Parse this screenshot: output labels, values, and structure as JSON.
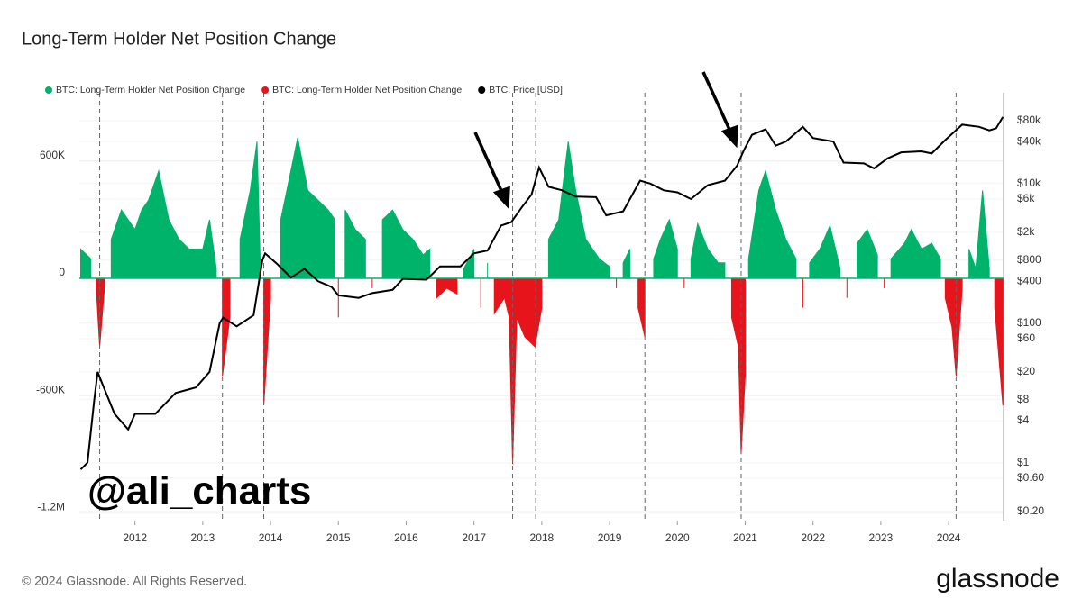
{
  "chart_data": {
    "type": "area-line",
    "title": "Long-Term Holder Net Position Change",
    "watermark": "@ali_charts",
    "footer": "© 2024 Glassnode. All Rights Reserved.",
    "brand": "glassnode",
    "xlim": [
      2011.18,
      2024.81
    ],
    "xticks": [
      2012,
      2013,
      2014,
      2015,
      2016,
      2017,
      2018,
      2019,
      2020,
      2021,
      2022,
      2023,
      2024
    ],
    "ylim": [
      -1240000,
      950000
    ],
    "yticks": [
      {
        "value": -1200000,
        "label": "-1.2M"
      },
      {
        "value": -600000,
        "label": "-600K"
      },
      0,
      {
        "value": 600000,
        "label": "600K"
      }
    ],
    "y2log": true,
    "y2lim": [
      0.148,
      200000
    ],
    "y2ticks": [
      {
        "value": 0.2,
        "label": "$0.20"
      },
      {
        "value": 0.6,
        "label": "$0.60"
      },
      {
        "value": 1,
        "label": "$1"
      },
      {
        "value": 4,
        "label": "$4"
      },
      {
        "value": 8,
        "label": "$8"
      },
      {
        "value": 20,
        "label": "$20"
      },
      {
        "value": 60,
        "label": "$60"
      },
      {
        "value": 100,
        "label": "$100"
      },
      {
        "value": 400,
        "label": "$400"
      },
      {
        "value": 800,
        "label": "$800"
      },
      {
        "value": 2000,
        "label": "$2k"
      },
      {
        "value": 6000,
        "label": "$6k"
      },
      {
        "value": 10000,
        "label": "$10k"
      },
      {
        "value": 40000,
        "label": "$40k"
      },
      {
        "value": 80000,
        "label": "$80k"
      }
    ],
    "grid": true,
    "legend": "top-left",
    "vlines": [
      2011.48,
      2013.29,
      2013.9,
      2017.57,
      2017.91,
      2019.52,
      2020.94,
      2024.11
    ],
    "x": [
      2011.2,
      2011.35,
      2011.43,
      2011.48,
      2011.55,
      2011.65,
      2011.8,
      2012.0,
      2012.1,
      2012.2,
      2012.35,
      2012.5,
      2012.65,
      2012.8,
      2013.0,
      2013.1,
      2013.2,
      2013.29,
      2013.4,
      2013.55,
      2013.7,
      2013.8,
      2013.85,
      2013.9,
      2014.0,
      2014.15,
      2014.3,
      2014.4,
      2014.55,
      2014.7,
      2014.85,
      2014.95,
      2015.0,
      2015.1,
      2015.25,
      2015.4,
      2015.5,
      2015.65,
      2015.8,
      2015.95,
      2016.1,
      2016.25,
      2016.35,
      2016.45,
      2016.6,
      2016.75,
      2016.85,
      2017.0,
      2017.1,
      2017.2,
      2017.3,
      2017.45,
      2017.52,
      2017.57,
      2017.63,
      2017.75,
      2017.9,
      2018.0,
      2018.1,
      2018.25,
      2018.39,
      2018.5,
      2018.65,
      2018.85,
      2019.0,
      2019.1,
      2019.2,
      2019.3,
      2019.42,
      2019.52,
      2019.65,
      2019.75,
      2019.88,
      2020.0,
      2020.1,
      2020.2,
      2020.3,
      2020.45,
      2020.6,
      2020.7,
      2020.8,
      2020.9,
      2020.94,
      2021.0,
      2021.05,
      2021.2,
      2021.3,
      2021.45,
      2021.6,
      2021.75,
      2021.85,
      2021.95,
      2022.1,
      2022.25,
      2022.4,
      2022.5,
      2022.65,
      2022.8,
      2022.95,
      2023.05,
      2023.15,
      2023.35,
      2023.45,
      2023.6,
      2023.75,
      2023.88,
      2023.95,
      2024.05,
      2024.11,
      2024.2,
      2024.3,
      2024.4,
      2024.5,
      2024.6,
      2024.68,
      2024.8
    ],
    "series": [
      {
        "name": "BTC: Long-Term Holder Net Position Change",
        "color": "#00b36b",
        "values": [
          150000,
          100000,
          null,
          null,
          null,
          200000,
          350000,
          250000,
          350000,
          400000,
          550000,
          300000,
          200000,
          150000,
          150000,
          300000,
          50000,
          null,
          null,
          200000,
          450000,
          700000,
          50000,
          null,
          null,
          300000,
          550000,
          720000,
          450000,
          400000,
          350000,
          300000,
          null,
          350000,
          250000,
          200000,
          null,
          300000,
          350000,
          250000,
          200000,
          120000,
          150000,
          null,
          null,
          null,
          50000,
          150000,
          null,
          80000,
          null,
          null,
          null,
          null,
          null,
          null,
          null,
          null,
          200000,
          300000,
          700000,
          450000,
          200000,
          100000,
          60000,
          null,
          80000,
          150000,
          null,
          null,
          100000,
          200000,
          300000,
          150000,
          null,
          100000,
          280000,
          150000,
          80000,
          80000,
          null,
          null,
          null,
          null,
          100000,
          450000,
          550000,
          350000,
          200000,
          100000,
          null,
          80000,
          150000,
          270000,
          50000,
          null,
          180000,
          250000,
          120000,
          null,
          100000,
          180000,
          250000,
          150000,
          180000,
          100000,
          null,
          null,
          null,
          null,
          150000,
          50000,
          450000,
          50000,
          null,
          null
        ]
      },
      {
        "name": "BTC: Long-Term Holder Net Position Change",
        "color": "#e8141b",
        "values": [
          null,
          null,
          -50000,
          -350000,
          -50000,
          null,
          null,
          null,
          null,
          null,
          null,
          null,
          null,
          null,
          null,
          null,
          null,
          -500000,
          -200000,
          null,
          null,
          null,
          null,
          -650000,
          -100000,
          null,
          null,
          null,
          null,
          null,
          null,
          null,
          -200000,
          null,
          null,
          null,
          -50000,
          null,
          null,
          null,
          null,
          null,
          null,
          -100000,
          -50000,
          -80000,
          null,
          null,
          -150000,
          null,
          -180000,
          -100000,
          -200000,
          -950000,
          -200000,
          -300000,
          -350000,
          -150000,
          null,
          null,
          null,
          null,
          null,
          null,
          null,
          -50000,
          null,
          null,
          -150000,
          -300000,
          null,
          null,
          null,
          null,
          -50000,
          null,
          null,
          null,
          null,
          null,
          -200000,
          -350000,
          -900000,
          -500000,
          null,
          null,
          null,
          null,
          null,
          null,
          -150000,
          null,
          null,
          null,
          null,
          -100000,
          null,
          null,
          null,
          -50000,
          null,
          null,
          null,
          null,
          null,
          null,
          -100000,
          -250000,
          -500000,
          -50000,
          null,
          null,
          null,
          null,
          -150000,
          -650000
        ]
      },
      {
        "name": "BTC: Price [USD]",
        "color": "#000000",
        "axis": "y2",
        "x": [
          2011.2,
          2011.3,
          2011.4,
          2011.45,
          2011.5,
          2011.7,
          2011.9,
          2012.0,
          2012.3,
          2012.6,
          2012.9,
          2013.1,
          2013.25,
          2013.3,
          2013.5,
          2013.75,
          2013.88,
          2013.92,
          2014.1,
          2014.3,
          2014.5,
          2014.7,
          2014.9,
          2015.0,
          2015.3,
          2015.5,
          2015.8,
          2015.95,
          2016.3,
          2016.5,
          2016.8,
          2017.0,
          2017.2,
          2017.4,
          2017.55,
          2017.7,
          2017.85,
          2017.96,
          2018.1,
          2018.3,
          2018.5,
          2018.8,
          2018.95,
          2019.2,
          2019.45,
          2019.6,
          2019.8,
          2020.0,
          2020.2,
          2020.45,
          2020.7,
          2020.88,
          2020.98,
          2021.1,
          2021.3,
          2021.45,
          2021.6,
          2021.85,
          2022.0,
          2022.3,
          2022.45,
          2022.75,
          2022.9,
          2023.1,
          2023.3,
          2023.6,
          2023.75,
          2023.95,
          2024.2,
          2024.45,
          2024.6,
          2024.7,
          2024.8
        ],
        "values": [
          0.8,
          1,
          8,
          20,
          15,
          5,
          3,
          5,
          5,
          10,
          12,
          20,
          100,
          120,
          90,
          130,
          800,
          1000,
          700,
          450,
          600,
          400,
          330,
          250,
          230,
          270,
          300,
          430,
          420,
          650,
          650,
          1000,
          1100,
          2500,
          2800,
          4500,
          7000,
          17000,
          9000,
          8000,
          6500,
          6400,
          3500,
          4000,
          11000,
          10000,
          8000,
          7500,
          6000,
          9500,
          11000,
          18000,
          30000,
          50000,
          60000,
          35000,
          40000,
          65000,
          45000,
          40000,
          20000,
          19500,
          16500,
          23000,
          28000,
          29000,
          27000,
          42000,
          70000,
          65000,
          58000,
          62000,
          90000
        ]
      }
    ]
  }
}
